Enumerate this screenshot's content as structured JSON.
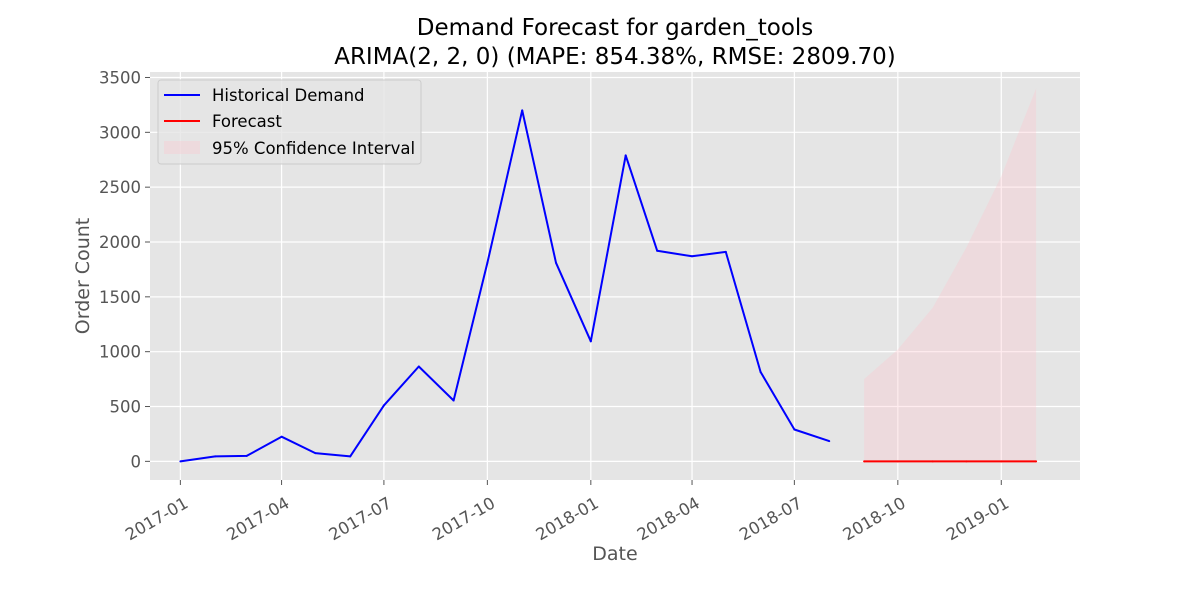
{
  "chart_data": {
    "type": "line",
    "title": "Demand Forecast for garden_tools",
    "subtitle": "ARIMA(2, 2, 0) (MAPE: 854.38%, RMSE: 2809.70)",
    "xlabel": "Date",
    "ylabel": "Order Count",
    "ylim": [
      -170,
      3550
    ],
    "xlim": [
      "2016-12-05",
      "2019-03-12"
    ],
    "y_ticks": [
      0,
      500,
      1000,
      1500,
      2000,
      2500,
      3000,
      3500
    ],
    "x_ticks": [
      "2017-01",
      "2017-04",
      "2017-07",
      "2017-10",
      "2018-01",
      "2018-04",
      "2018-07",
      "2018-10",
      "2019-01"
    ],
    "grid": true,
    "legend_position": "top-left",
    "series": [
      {
        "name": "Historical Demand",
        "color": "#0000ff",
        "x": [
          "2017-01-01",
          "2017-02-01",
          "2017-03-01",
          "2017-04-01",
          "2017-05-01",
          "2017-06-01",
          "2017-07-01",
          "2017-08-01",
          "2017-09-01",
          "2017-10-01",
          "2017-11-01",
          "2017-12-01",
          "2018-01-01",
          "2018-02-01",
          "2018-03-01",
          "2018-04-01",
          "2018-05-01",
          "2018-06-01",
          "2018-07-01",
          "2018-08-01"
        ],
        "values": [
          0,
          45,
          50,
          225,
          75,
          45,
          510,
          865,
          555,
          1810,
          3200,
          1810,
          1095,
          2790,
          1920,
          1870,
          1910,
          815,
          290,
          185
        ]
      },
      {
        "name": "Forecast",
        "color": "#ff0000",
        "x": [
          "2018-09-01",
          "2018-10-01",
          "2018-11-01",
          "2018-12-01",
          "2019-01-01",
          "2019-02-01"
        ],
        "values": [
          0,
          0,
          0,
          0,
          0,
          0
        ]
      }
    ],
    "confidence_interval": {
      "name": "95% Confidence Interval",
      "color": "#ffc0cb",
      "x": [
        "2018-09-01",
        "2018-10-01",
        "2018-11-01",
        "2018-12-01",
        "2019-01-01",
        "2019-02-01"
      ],
      "upper": [
        750,
        1020,
        1400,
        1950,
        2600,
        3400
      ],
      "lower": [
        0,
        0,
        0,
        0,
        0,
        0
      ]
    }
  }
}
